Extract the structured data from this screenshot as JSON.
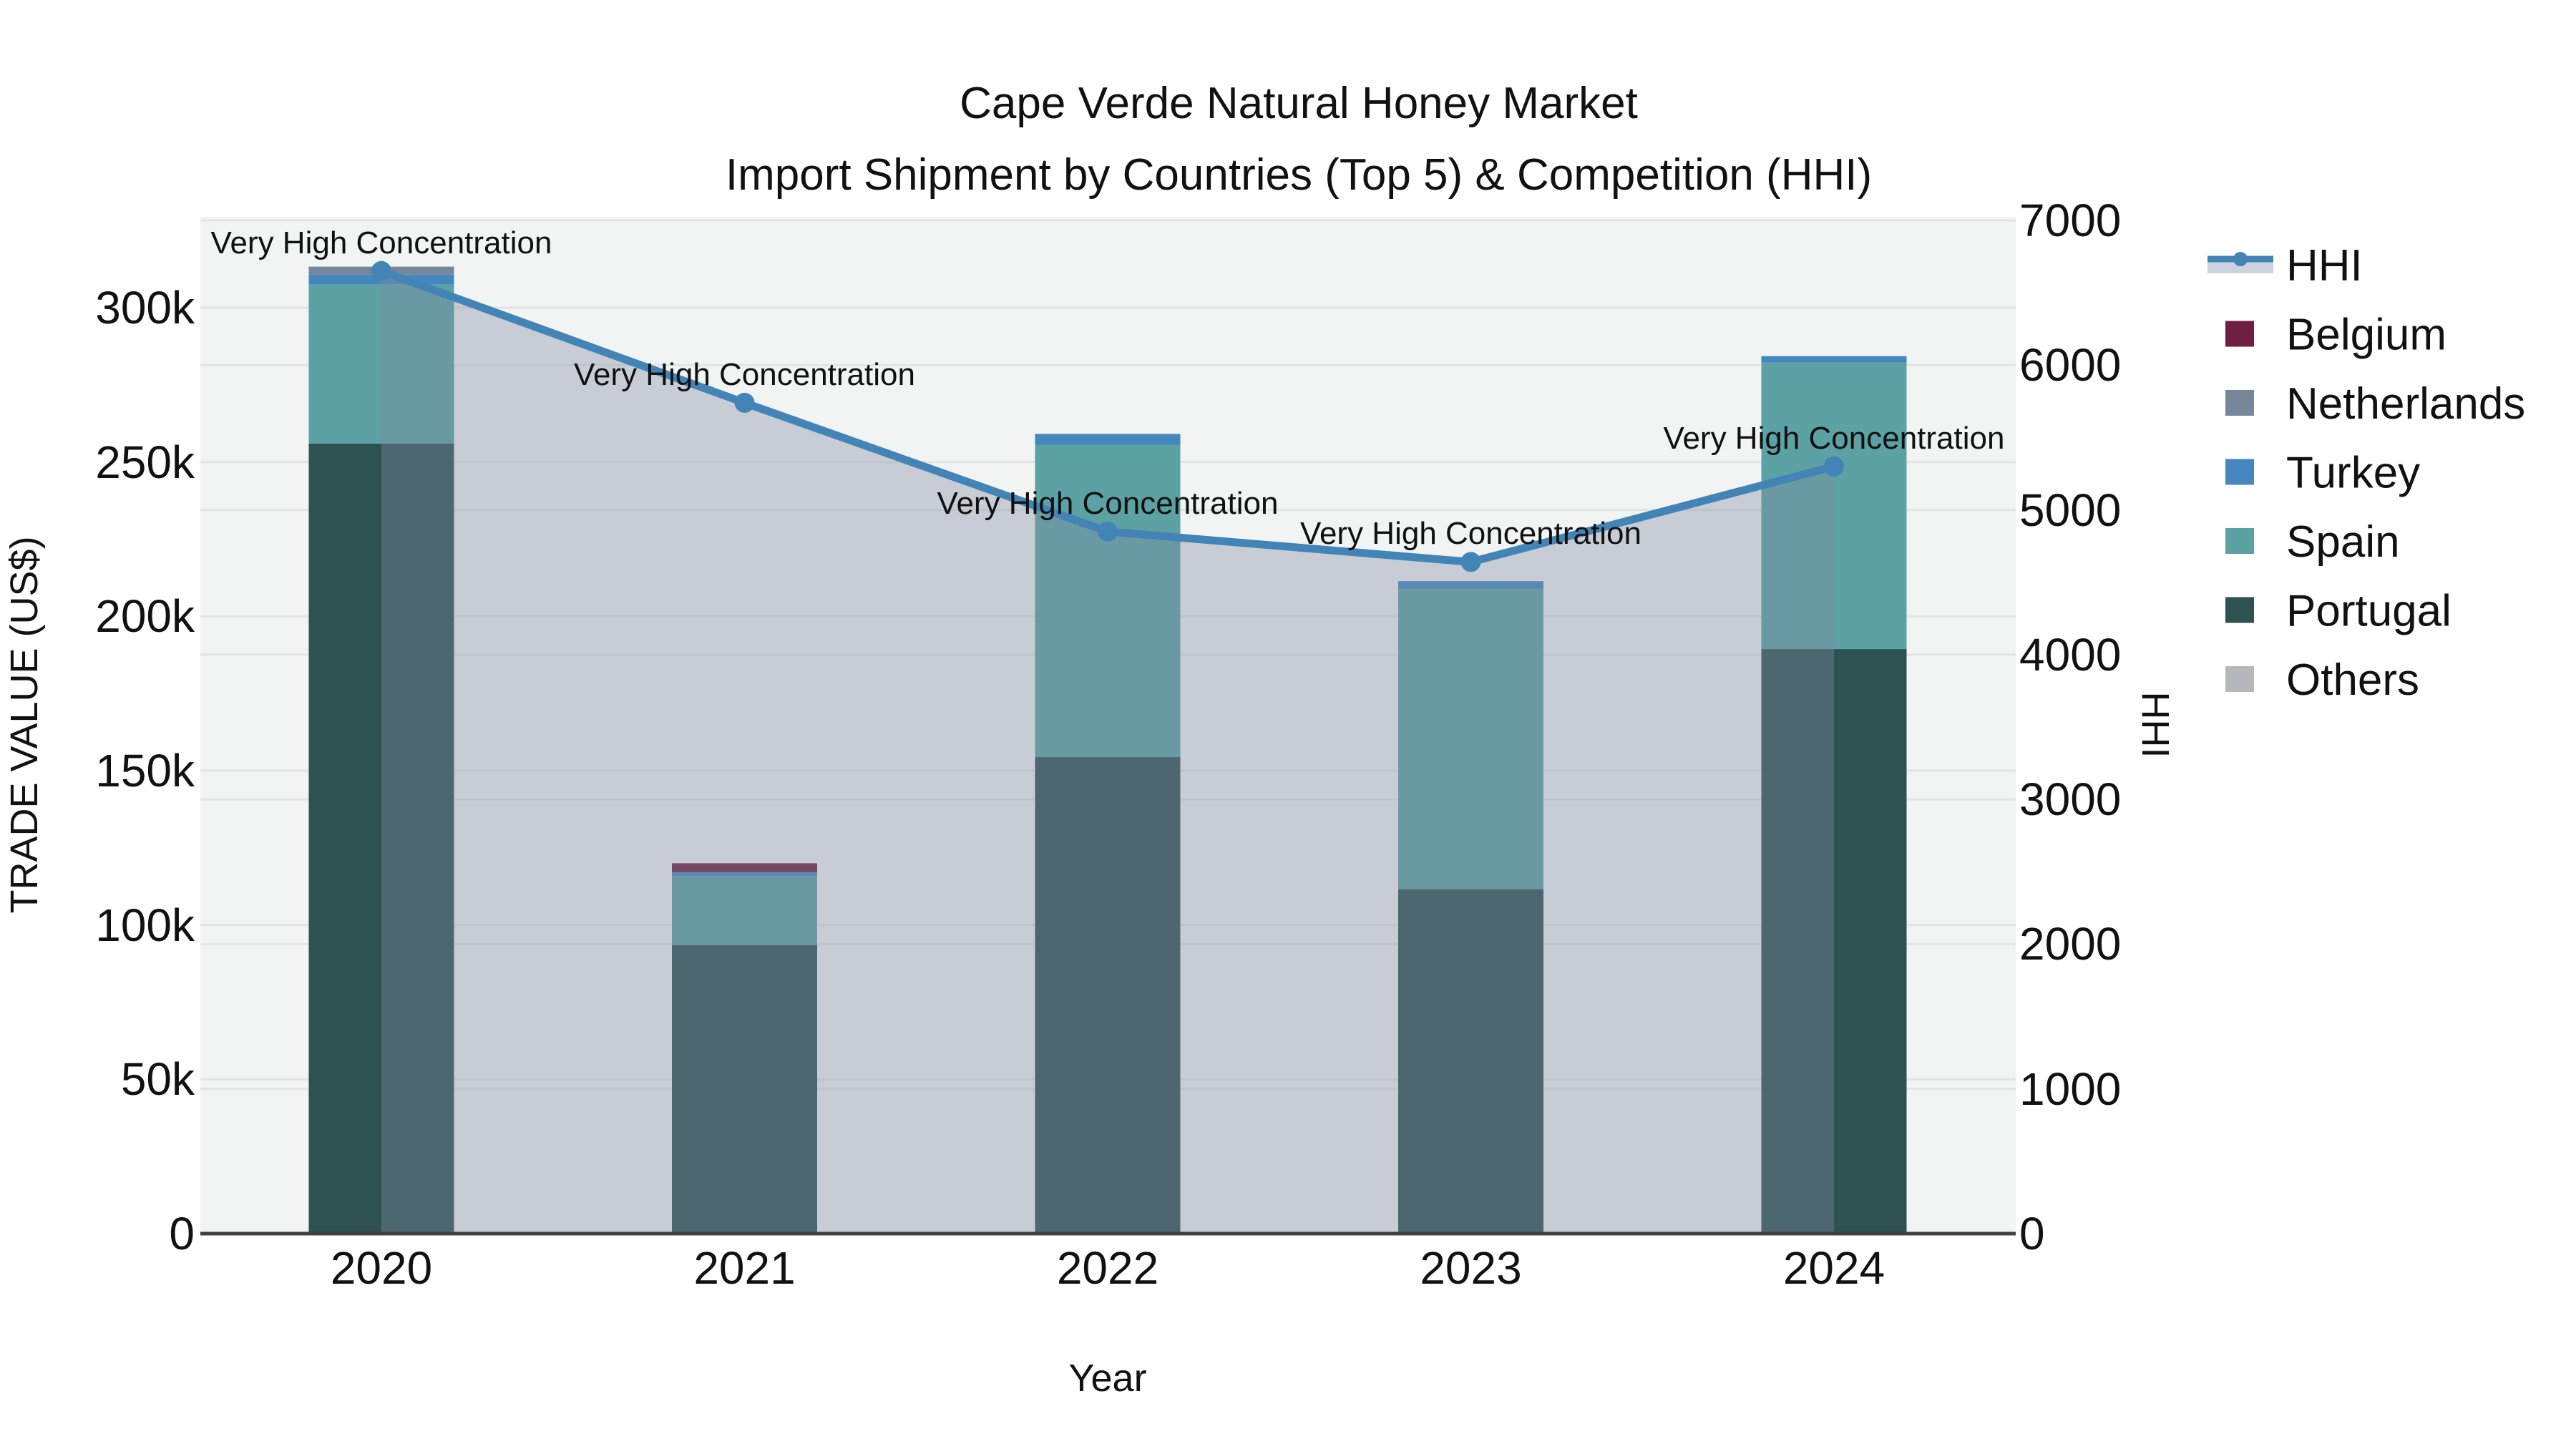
{
  "title": {
    "line1": "Cape Verde Natural Honey Market",
    "line2": "Import Shipment by Countries (Top 5) & Competition (HHI)"
  },
  "chart_data": {
    "type": "stacked-bar+line",
    "categories": [
      "2020",
      "2021",
      "2022",
      "2023",
      "2024"
    ],
    "x_axis": {
      "title": "Year"
    },
    "left_axis": {
      "title": "TRADE VALUE (US$)",
      "range": [
        0,
        330000
      ],
      "ticks": [
        0,
        50000,
        100000,
        150000,
        200000,
        250000,
        300000
      ],
      "tick_labels": [
        "0",
        "50k",
        "100k",
        "150k",
        "200k",
        "250k",
        "300k"
      ]
    },
    "right_axis": {
      "title": "HHI",
      "range": [
        0,
        7086
      ],
      "ticks": [
        0,
        1000,
        2000,
        3000,
        4000,
        5000,
        6000,
        7000
      ],
      "tick_labels": [
        "0",
        "1000",
        "2000",
        "3000",
        "4000",
        "5000",
        "6000",
        "7000"
      ]
    },
    "series": [
      {
        "name": "Others",
        "color": "#b5b8ba",
        "values": [
          0,
          0,
          0,
          0,
          0
        ]
      },
      {
        "name": "Portugal",
        "color": "#2e5152",
        "values": [
          256000,
          93500,
          154400,
          111600,
          189400
        ]
      },
      {
        "name": "Spain",
        "color": "#5ca1a3",
        "values": [
          51500,
          22400,
          101200,
          97300,
          92800
        ]
      },
      {
        "name": "Turkey",
        "color": "#4687bf",
        "values": [
          3200,
          1200,
          3500,
          2500,
          2100
        ]
      },
      {
        "name": "Netherlands",
        "color": "#76879b",
        "values": [
          2600,
          0,
          0,
          0,
          0
        ]
      },
      {
        "name": "Belgium",
        "color": "#701f42",
        "values": [
          0,
          2900,
          0,
          0,
          0
        ]
      }
    ],
    "line_series": {
      "name": "HHI",
      "color": "#4384b6",
      "area_color": "rgba(128,142,162,0.37)",
      "legend_area_color": "#ccd3de",
      "values": [
        6650,
        5740,
        4850,
        4640,
        5300
      ]
    },
    "annotations": [
      "Very High Concentration",
      "Very High Concentration",
      "Very High Concentration",
      "Very High Concentration",
      "Very High Concentration"
    ],
    "legend": {
      "order": [
        "HHI",
        "Belgium",
        "Netherlands",
        "Turkey",
        "Spain",
        "Portugal",
        "Others"
      ]
    },
    "colors": {
      "plot_bg": "#f2f3f3",
      "grid": "#e2e4e5",
      "baseline": "#3f3f3f",
      "text": "#111111"
    }
  }
}
